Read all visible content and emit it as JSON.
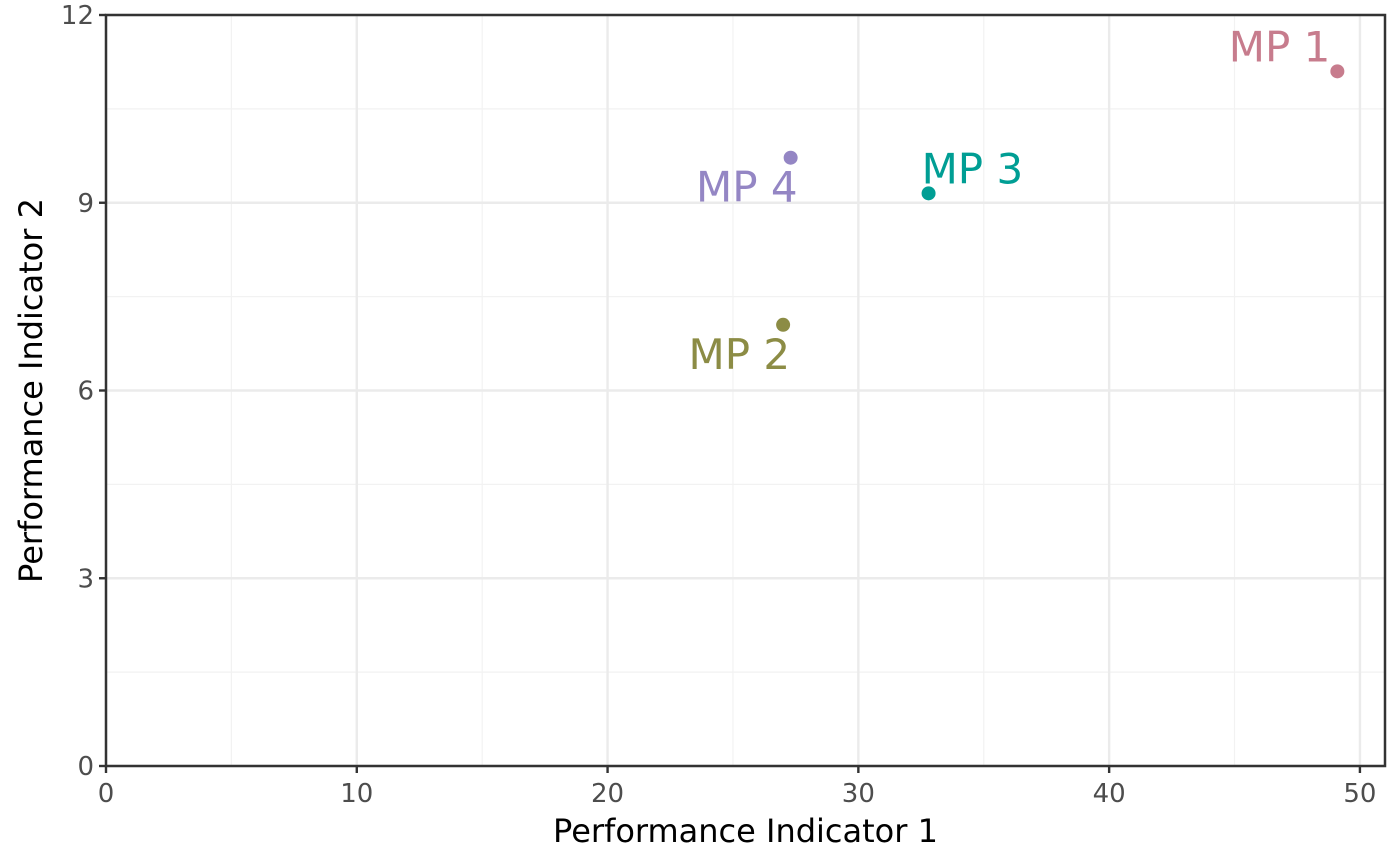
{
  "chart_data": {
    "type": "scatter",
    "title": "",
    "xlabel": "Performance Indicator 1",
    "ylabel": "Performance Indicator 2",
    "xlim": [
      0,
      51
    ],
    "ylim": [
      0,
      12
    ],
    "x_ticks": [
      0,
      10,
      20,
      30,
      40,
      50
    ],
    "y_ticks": [
      0,
      3,
      6,
      9,
      12
    ],
    "x_tick_labels": [
      "0",
      "10",
      "20",
      "30",
      "40",
      "50"
    ],
    "y_tick_labels": [
      "0",
      "3",
      "6",
      "9",
      "12"
    ],
    "grid": true,
    "legend": "none",
    "points": [
      {
        "name": "MP 1",
        "x": 49.1,
        "y": 11.1,
        "color": "#c77c8d",
        "label_pos": "upper-left"
      },
      {
        "name": "MP 2",
        "x": 27.0,
        "y": 7.05,
        "color": "#8c8c45",
        "label_pos": "lower-left"
      },
      {
        "name": "MP 3",
        "x": 32.8,
        "y": 9.15,
        "color": "#009e94",
        "label_pos": "upper-right"
      },
      {
        "name": "MP 4",
        "x": 27.3,
        "y": 9.72,
        "color": "#9486c4",
        "label_pos": "lower-left"
      }
    ]
  }
}
